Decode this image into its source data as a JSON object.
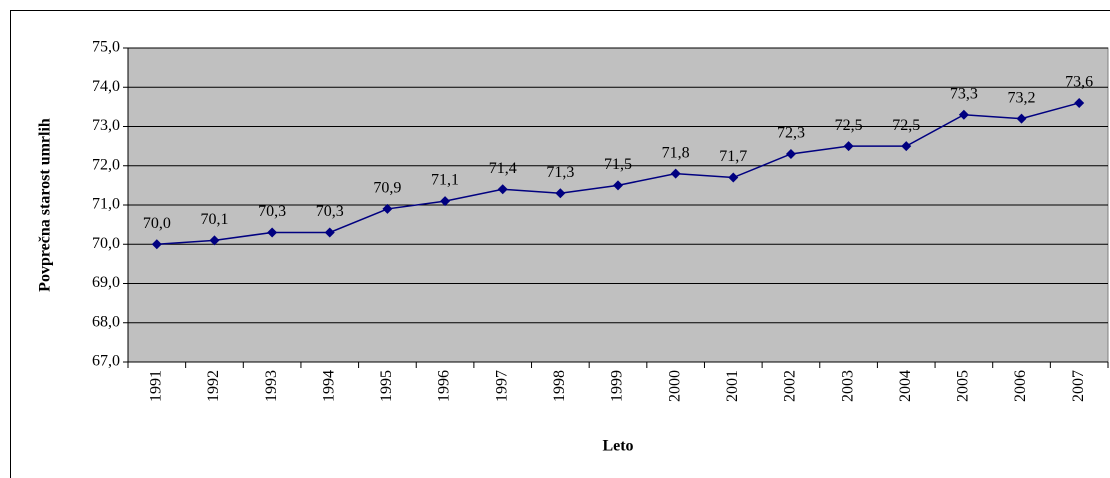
{
  "chart_data": {
    "type": "line",
    "y_axis_label": "Povprečna starost umrlih",
    "x_axis_label": "Leto",
    "categories": [
      "1991",
      "1992",
      "1993",
      "1994",
      "1995",
      "1996",
      "1997",
      "1998",
      "1999",
      "2000",
      "2001",
      "2002",
      "2003",
      "2004",
      "2005",
      "2006",
      "2007"
    ],
    "series": [
      {
        "name": "Povprečna starost umrlih",
        "color": "#000080",
        "values": [
          70.0,
          70.1,
          70.3,
          70.3,
          70.9,
          71.1,
          71.4,
          71.3,
          71.5,
          71.8,
          71.7,
          72.3,
          72.5,
          72.5,
          73.3,
          73.2,
          73.6
        ],
        "value_labels": [
          "70,0",
          "70,1",
          "70,3",
          "70,3",
          "70,9",
          "71,1",
          "71,4",
          "71,3",
          "71,5",
          "71,8",
          "71,7",
          "72,3",
          "72,5",
          "72,5",
          "73,3",
          "73,2",
          "73,6"
        ]
      }
    ],
    "ylim": [
      67,
      75
    ],
    "yticks": [
      {
        "value": 67,
        "label": "67,0"
      },
      {
        "value": 68,
        "label": "68,0"
      },
      {
        "value": 69,
        "label": "69,0"
      },
      {
        "value": 70,
        "label": "70,0"
      },
      {
        "value": 71,
        "label": "71,0"
      },
      {
        "value": 72,
        "label": "72,0"
      },
      {
        "value": 73,
        "label": "73,0"
      },
      {
        "value": 74,
        "label": "74,0"
      },
      {
        "value": 75,
        "label": "75,0"
      }
    ],
    "grid": true,
    "plot_background": "#c0c0c0"
  }
}
